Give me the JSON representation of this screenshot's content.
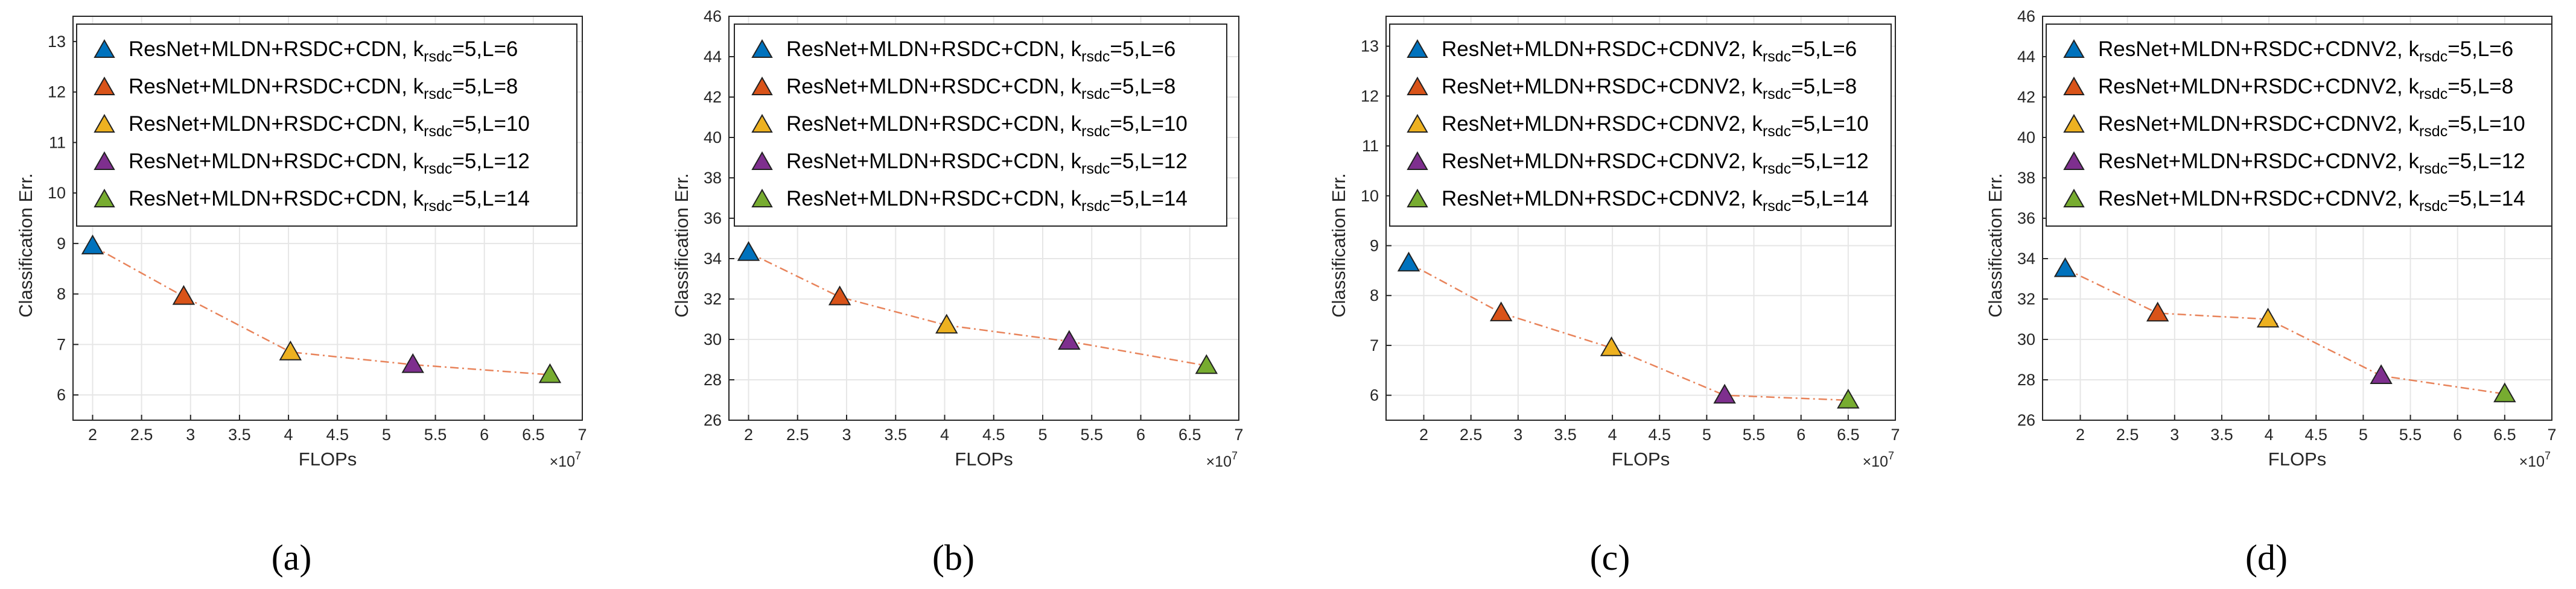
{
  "colors": {
    "marker_fill": [
      "#0072BD",
      "#D95319",
      "#EDB120",
      "#7E2F8E",
      "#77AC30"
    ],
    "line": "#E8835A",
    "grid": "#E6E6E6",
    "axis": "#262626"
  },
  "chart_data": [
    {
      "type": "line",
      "caption": "(a)",
      "xlabel": "FLOPs",
      "ylabel": "Classification Err.",
      "x_multiplier": "×10",
      "x_multiplier_exp": "7",
      "xlim": [
        1.8,
        7
      ],
      "ylim": [
        5.5,
        13.5
      ],
      "xticks": [
        2,
        2.5,
        3,
        3.5,
        4,
        4.5,
        5,
        5.5,
        6,
        6.5,
        7
      ],
      "xtick_labels": [
        "2",
        "2.5",
        "3",
        "3.5",
        "4",
        "4.5",
        "5",
        "5.5",
        "6",
        "6.5",
        "7"
      ],
      "yticks": [
        6,
        7,
        8,
        9,
        10,
        11,
        12,
        13
      ],
      "ytick_labels": [
        "6",
        "7",
        "8",
        "9",
        "10",
        "11",
        "12",
        "13"
      ],
      "x": [
        2.0,
        2.93,
        4.02,
        5.27,
        6.67
      ],
      "y": [
        8.95,
        7.95,
        6.85,
        6.6,
        6.4
      ],
      "legend": [
        {
          "pre": "ResNet+MLDN+RSDC+CDN, k",
          "sub": "rsdc",
          "post": "=5,L=6"
        },
        {
          "pre": "ResNet+MLDN+RSDC+CDN, k",
          "sub": "rsdc",
          "post": "=5,L=8"
        },
        {
          "pre": "ResNet+MLDN+RSDC+CDN, k",
          "sub": "rsdc",
          "post": "=5,L=10"
        },
        {
          "pre": "ResNet+MLDN+RSDC+CDN, k",
          "sub": "rsdc",
          "post": "=5,L=12"
        },
        {
          "pre": "ResNet+MLDN+RSDC+CDN, k",
          "sub": "rsdc",
          "post": "=5,L=14"
        }
      ]
    },
    {
      "type": "line",
      "caption": "(b)",
      "xlabel": "FLOPs",
      "ylabel": "Classification Err.",
      "x_multiplier": "×10",
      "x_multiplier_exp": "7",
      "xlim": [
        1.8,
        7
      ],
      "ylim": [
        26,
        46
      ],
      "xticks": [
        2,
        2.5,
        3,
        3.5,
        4,
        4.5,
        5,
        5.5,
        6,
        6.5,
        7
      ],
      "xtick_labels": [
        "2",
        "2.5",
        "3",
        "3.5",
        "4",
        "4.5",
        "5",
        "5.5",
        "6",
        "6.5",
        "7"
      ],
      "yticks": [
        26,
        28,
        30,
        32,
        34,
        36,
        38,
        40,
        42,
        44,
        46
      ],
      "ytick_labels": [
        "26",
        "28",
        "30",
        "32",
        "34",
        "36",
        "38",
        "40",
        "42",
        "44",
        "46"
      ],
      "x": [
        2.0,
        2.93,
        4.02,
        5.27,
        6.67
      ],
      "y": [
        34.3,
        32.1,
        30.7,
        29.9,
        28.7
      ],
      "legend": [
        {
          "pre": "ResNet+MLDN+RSDC+CDN, k",
          "sub": "rsdc",
          "post": "=5,L=6"
        },
        {
          "pre": "ResNet+MLDN+RSDC+CDN, k",
          "sub": "rsdc",
          "post": "=5,L=8"
        },
        {
          "pre": "ResNet+MLDN+RSDC+CDN, k",
          "sub": "rsdc",
          "post": "=5,L=10"
        },
        {
          "pre": "ResNet+MLDN+RSDC+CDN, k",
          "sub": "rsdc",
          "post": "=5,L=12"
        },
        {
          "pre": "ResNet+MLDN+RSDC+CDN, k",
          "sub": "rsdc",
          "post": "=5,L=14"
        }
      ]
    },
    {
      "type": "line",
      "caption": "(c)",
      "xlabel": "FLOPs",
      "ylabel": "Classification Err.",
      "x_multiplier": "×10",
      "x_multiplier_exp": "7",
      "xlim": [
        1.6,
        7
      ],
      "ylim": [
        5.5,
        13.6
      ],
      "xticks": [
        2,
        2.5,
        3,
        3.5,
        4,
        4.5,
        5,
        5.5,
        6,
        6.5,
        7
      ],
      "xtick_labels": [
        "2",
        "2.5",
        "3",
        "3.5",
        "4",
        "4.5",
        "5",
        "5.5",
        "6",
        "6.5",
        "7"
      ],
      "yticks": [
        6,
        7,
        8,
        9,
        10,
        11,
        12,
        13
      ],
      "ytick_labels": [
        "6",
        "7",
        "8",
        "9",
        "10",
        "11",
        "12",
        "13"
      ],
      "x": [
        1.84,
        2.82,
        3.99,
        5.19,
        6.5
      ],
      "y": [
        8.65,
        7.65,
        6.95,
        6.0,
        5.9
      ],
      "legend": [
        {
          "pre": "ResNet+MLDN+RSDC+CDNV2, k",
          "sub": "rsdc",
          "post": "=5,L=6"
        },
        {
          "pre": "ResNet+MLDN+RSDC+CDNV2, k",
          "sub": "rsdc",
          "post": "=5,L=8"
        },
        {
          "pre": "ResNet+MLDN+RSDC+CDNV2, k",
          "sub": "rsdc",
          "post": "=5,L=10"
        },
        {
          "pre": "ResNet+MLDN+RSDC+CDNV2, k",
          "sub": "rsdc",
          "post": "=5,L=12"
        },
        {
          "pre": "ResNet+MLDN+RSDC+CDNV2, k",
          "sub": "rsdc",
          "post": "=5,L=14"
        }
      ]
    },
    {
      "type": "line",
      "caption": "(d)",
      "xlabel": "FLOPs",
      "ylabel": "Classification Err.",
      "x_multiplier": "×10",
      "x_multiplier_exp": "7",
      "xlim": [
        1.6,
        7
      ],
      "ylim": [
        26,
        46
      ],
      "xticks": [
        2,
        2.5,
        3,
        3.5,
        4,
        4.5,
        5,
        5.5,
        6,
        6.5,
        7
      ],
      "xtick_labels": [
        "2",
        "2.5",
        "3",
        "3.5",
        "4",
        "4.5",
        "5",
        "5.5",
        "6",
        "6.5",
        "7"
      ],
      "yticks": [
        26,
        28,
        30,
        32,
        34,
        36,
        38,
        40,
        42,
        44,
        46
      ],
      "ytick_labels": [
        "26",
        "28",
        "30",
        "32",
        "34",
        "36",
        "38",
        "40",
        "42",
        "44",
        "46"
      ],
      "x": [
        1.84,
        2.82,
        3.99,
        5.19,
        6.5
      ],
      "y": [
        33.5,
        31.3,
        31.0,
        28.2,
        27.3
      ],
      "legend": [
        {
          "pre": "ResNet+MLDN+RSDC+CDNV2, k",
          "sub": "rsdc",
          "post": "=5,L=6"
        },
        {
          "pre": "ResNet+MLDN+RSDC+CDNV2, k",
          "sub": "rsdc",
          "post": "=5,L=8"
        },
        {
          "pre": "ResNet+MLDN+RSDC+CDNV2, k",
          "sub": "rsdc",
          "post": "=5,L=10"
        },
        {
          "pre": "ResNet+MLDN+RSDC+CDNV2, k",
          "sub": "rsdc",
          "post": "=5,L=12"
        },
        {
          "pre": "ResNet+MLDN+RSDC+CDNV2, k",
          "sub": "rsdc",
          "post": "=5,L=14"
        }
      ]
    }
  ]
}
